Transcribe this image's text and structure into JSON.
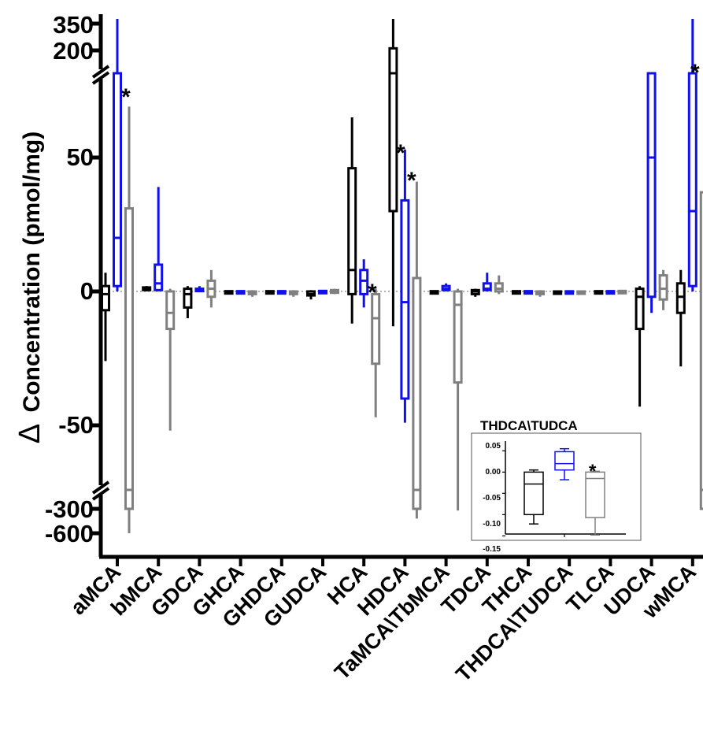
{
  "chart_data": [
    {
      "type": "box",
      "title": "",
      "ylabel": "Concentration (pmol/mg)",
      "ylabel_prefix": "Δ",
      "xlabel": "",
      "axis_breaks": [
        [
          -60,
          -300
        ],
        [
          70,
          200
        ]
      ],
      "yticks": [
        "350",
        "200",
        "50",
        "0",
        "-50",
        "-300",
        "-600"
      ],
      "colors": {
        "group1": "#000000",
        "group2": "#1010ee",
        "group3": "#808080",
        "zero_line": "#999999"
      },
      "categories": [
        "aMCA",
        "bMCA",
        "GDCA",
        "GHCA",
        "GHDCA",
        "GUDCA",
        "HCA",
        "HDCA",
        "TaMCA\\TbMCA",
        "TDCA",
        "THCA",
        "THDCA\\TUDCA",
        "TLCA",
        "UDCA",
        "wMCA"
      ],
      "series": [
        {
          "color": "#000000",
          "boxes": [
            {
              "min": -26,
              "q1": -7,
              "median": -1,
              "q3": 2,
              "max": 7
            },
            {
              "min": 0,
              "q1": 0.5,
              "median": 1,
              "q3": 1.5,
              "max": 2
            },
            {
              "min": -10,
              "q1": -6,
              "median": -1,
              "q3": 1,
              "max": 2
            },
            {
              "min": -0.2,
              "q1": -0.1,
              "median": 0,
              "q3": 0.1,
              "max": 0.2
            },
            {
              "min": -0.2,
              "q1": -0.1,
              "median": 0,
              "q3": 0.1,
              "max": 0.2
            },
            {
              "min": -3,
              "q1": -1.5,
              "median": -1,
              "q3": 0,
              "max": 0.5
            },
            {
              "min": -12,
              "q1": -1,
              "median": 8,
              "q3": 46,
              "max": 65
            },
            {
              "min": -13,
              "q1": 30,
              "median": 120,
              "q3": 210,
              "max": 350
            },
            {
              "min": -0.2,
              "q1": -0.1,
              "median": 0,
              "q3": 0.1,
              "max": 0.2
            },
            {
              "min": -2,
              "q1": -1,
              "median": 0,
              "q3": 0.5,
              "max": 1
            },
            {
              "min": -0.2,
              "q1": -0.1,
              "median": 0,
              "q3": 0.1,
              "max": 0.2
            },
            {
              "min": -0.12,
              "q1": -0.1,
              "median": -0.03,
              "q3": 0,
              "max": 0.005
            },
            {
              "min": -0.2,
              "q1": -0.1,
              "median": 0,
              "q3": 0.1,
              "max": 0.2
            },
            {
              "min": -43,
              "q1": -14,
              "median": -2,
              "q3": 1,
              "max": 2
            },
            {
              "min": -28,
              "q1": -8,
              "median": -2,
              "q3": 3,
              "max": 8
            }
          ]
        },
        {
          "color": "#1010ee",
          "boxes": [
            {
              "min": 0,
              "q1": 2,
              "median": 20,
              "q3": 150,
              "max": 350
            },
            {
              "min": 0,
              "q1": 0.5,
              "median": 3,
              "q3": 10,
              "max": 39
            },
            {
              "min": 0,
              "q1": 0.2,
              "median": 0.5,
              "q3": 1,
              "max": 2
            },
            {
              "min": -0.1,
              "q1": 0,
              "median": 0.05,
              "q3": 0.1,
              "max": 0.2
            },
            {
              "min": -0.1,
              "q1": 0,
              "median": 0.05,
              "q3": 0.1,
              "max": 0.2
            },
            {
              "min": -0.1,
              "q1": 0,
              "median": 0.1,
              "q3": 0.2,
              "max": 0.3
            },
            {
              "min": -6,
              "q1": -1,
              "median": 4,
              "q3": 8,
              "max": 12
            },
            {
              "min": -49,
              "q1": -40,
              "median": -4,
              "q3": 34,
              "max": 53
            },
            {
              "min": 0,
              "q1": 0.5,
              "median": 1,
              "q3": 2,
              "max": 3
            },
            {
              "min": 0,
              "q1": 0.5,
              "median": 1,
              "q3": 3,
              "max": 7
            },
            {
              "min": -0.1,
              "q1": 0,
              "median": 0.05,
              "q3": 0.1,
              "max": 0.2
            },
            {
              "min": -0.02,
              "q1": 0.005,
              "median": 0.02,
              "q3": 0.048,
              "max": 0.055
            },
            {
              "min": -0.1,
              "q1": 0,
              "median": 0.05,
              "q3": 0.1,
              "max": 0.2
            },
            {
              "min": -8,
              "q1": -2,
              "median": 50,
              "q3": 150,
              "max": 175
            },
            {
              "min": 0,
              "q1": 2,
              "median": 30,
              "q3": 150,
              "max": 350
            }
          ]
        },
        {
          "color": "#808080",
          "boxes": [
            {
              "min": -600,
              "q1": -300,
              "median": -62,
              "q3": 31,
              "max": 69
            },
            {
              "min": -52,
              "q1": -14,
              "median": -8,
              "q3": 0,
              "max": 1
            },
            {
              "min": -6,
              "q1": -2,
              "median": 1,
              "q3": 4,
              "max": 8
            },
            {
              "min": -2,
              "q1": -1,
              "median": -0.5,
              "q3": 0,
              "max": 0.5
            },
            {
              "min": -2,
              "q1": -1,
              "median": -0.5,
              "q3": 0,
              "max": 0.5
            },
            {
              "min": -1,
              "q1": -0.5,
              "median": 0,
              "q3": 0.5,
              "max": 1
            },
            {
              "min": -47,
              "q1": -27,
              "median": -10,
              "q3": -1,
              "max": 1
            },
            {
              "min": -420,
              "q1": -300,
              "median": -62,
              "q3": 5,
              "max": 41
            },
            {
              "min": -320,
              "q1": -34,
              "median": -5,
              "q3": 0,
              "max": 1
            },
            {
              "min": -1,
              "q1": 0,
              "median": 1,
              "q3": 3,
              "max": 6
            },
            {
              "min": -2,
              "q1": -1,
              "median": -0.5,
              "q3": 0,
              "max": 0.5
            },
            {
              "min": -0.148,
              "q1": -0.107,
              "median": -0.015,
              "q3": 0,
              "max": 0.002
            },
            {
              "min": -0.5,
              "q1": -0.2,
              "median": 0,
              "q3": 0.2,
              "max": 0.5
            },
            {
              "min": -7,
              "q1": -3,
              "median": 1,
              "q3": 6,
              "max": 8
            },
            {
              "min": -660,
              "q1": -300,
              "median": -62,
              "q3": 37,
              "max": 69
            }
          ]
        }
      ],
      "annotations": [
        {
          "category": "aMCA",
          "text": "*"
        },
        {
          "category": "HCA",
          "text": "*"
        },
        {
          "category": "HDCA",
          "text": "*"
        },
        {
          "category": "HDCA",
          "text": "*"
        },
        {
          "category": "wMCA",
          "text": "*"
        }
      ]
    },
    {
      "type": "box",
      "title": "THDCA\\TUDCA",
      "ylim": [
        -0.155,
        0.06
      ],
      "yticks": [
        "0.05",
        "0.00",
        "-0.05",
        "-0.10",
        "-0.15"
      ],
      "series": [
        {
          "color": "#000000",
          "boxes": [
            {
              "min": -0.122,
              "q1": -0.1,
              "median": -0.028,
              "q3": 0,
              "max": 0.005
            }
          ]
        },
        {
          "color": "#1010ee",
          "boxes": [
            {
              "min": -0.018,
              "q1": 0.005,
              "median": 0.02,
              "q3": 0.048,
              "max": 0.055
            }
          ]
        },
        {
          "color": "#808080",
          "boxes": [
            {
              "min": -0.148,
              "q1": -0.107,
              "median": -0.015,
              "q3": 0,
              "max": 0.002
            }
          ]
        }
      ],
      "annotations": [
        {
          "series": 2,
          "text": "*"
        }
      ]
    }
  ]
}
